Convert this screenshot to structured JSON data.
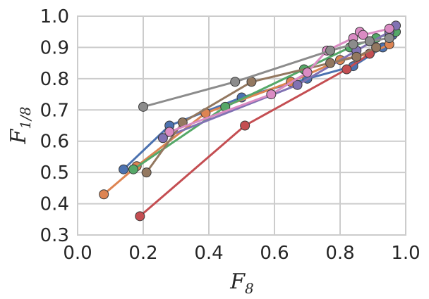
{
  "chart_data": {
    "type": "line",
    "title": "",
    "xlabel": "F",
    "xlabel_sub": "8",
    "ylabel": "F",
    "ylabel_sub": "1/8",
    "xlim": [
      0.0,
      1.0
    ],
    "ylim": [
      0.3,
      1.0
    ],
    "x_ticks": [
      0.0,
      0.2,
      0.4,
      0.6,
      0.8,
      1.0
    ],
    "x_tick_labels": [
      "0.0",
      "0.2",
      "0.4",
      "0.6",
      "0.8",
      "1.0"
    ],
    "y_ticks": [
      0.3,
      0.4,
      0.5,
      0.6,
      0.7,
      0.8,
      0.9,
      1.0
    ],
    "y_tick_labels": [
      "0.3",
      "0.4",
      "0.5",
      "0.6",
      "0.7",
      "0.8",
      "0.9",
      "1.0"
    ],
    "grid": true,
    "legend": "none",
    "series": [
      {
        "color": "#4c72b0",
        "x": [
          0.14,
          0.28,
          0.5,
          0.7,
          0.84,
          0.93,
          0.96
        ],
        "y": [
          0.51,
          0.65,
          0.74,
          0.8,
          0.84,
          0.9,
          0.94
        ]
      },
      {
        "color": "#dd8452",
        "x": [
          0.08,
          0.18,
          0.39,
          0.65,
          0.8,
          0.89,
          0.95
        ],
        "y": [
          0.43,
          0.52,
          0.69,
          0.79,
          0.86,
          0.88,
          0.91
        ]
      },
      {
        "color": "#55a868",
        "x": [
          0.17,
          0.45,
          0.69,
          0.83,
          0.91,
          0.97
        ],
        "y": [
          0.51,
          0.71,
          0.83,
          0.9,
          0.93,
          0.95
        ]
      },
      {
        "color": "#c44e52",
        "x": [
          0.19,
          0.51,
          0.82,
          0.89
        ],
        "y": [
          0.36,
          0.65,
          0.83,
          0.88
        ]
      },
      {
        "color": "#8172b3",
        "x": [
          0.26,
          0.67,
          0.85,
          0.95,
          0.97
        ],
        "y": [
          0.61,
          0.78,
          0.89,
          0.95,
          0.97
        ]
      },
      {
        "color": "#937860",
        "x": [
          0.21,
          0.32,
          0.53,
          0.77,
          0.85,
          0.91
        ],
        "y": [
          0.5,
          0.66,
          0.79,
          0.85,
          0.87,
          0.9
        ]
      },
      {
        "color": "#da8bc3",
        "x": [
          0.28,
          0.59,
          0.7,
          0.76,
          0.84,
          0.86,
          0.87,
          0.95
        ],
        "y": [
          0.63,
          0.75,
          0.82,
          0.89,
          0.93,
          0.95,
          0.94,
          0.96
        ]
      },
      {
        "color": "#8c8c8c",
        "x": [
          0.2,
          0.48,
          0.77,
          0.84,
          0.89,
          0.95
        ],
        "y": [
          0.71,
          0.79,
          0.89,
          0.91,
          0.92,
          0.93
        ]
      }
    ]
  }
}
